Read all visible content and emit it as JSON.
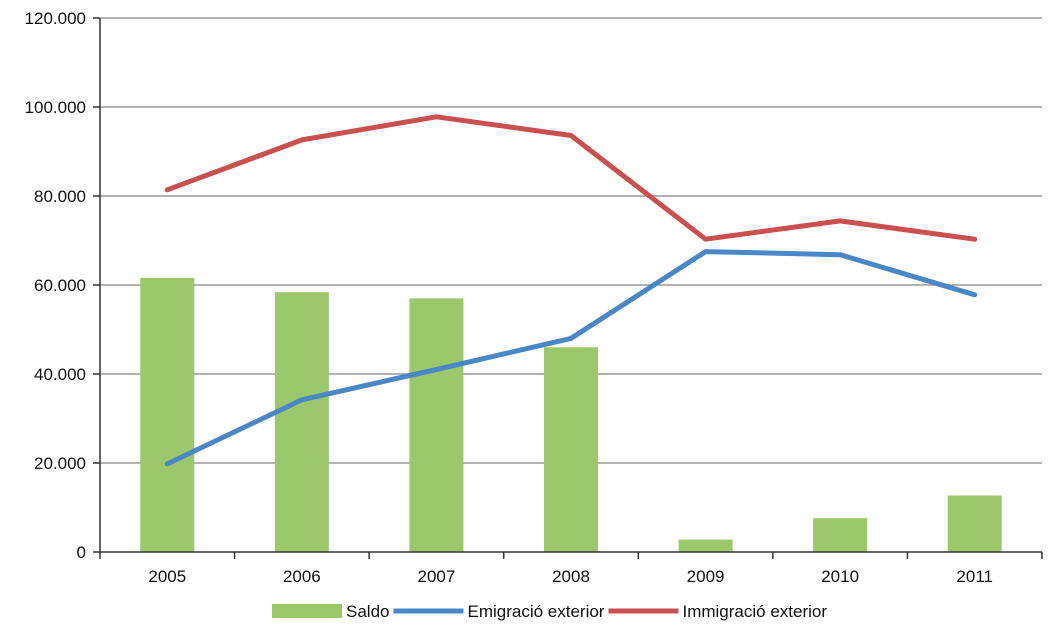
{
  "chart_data": {
    "type": "bar",
    "categories": [
      "2005",
      "2006",
      "2007",
      "2008",
      "2009",
      "2010",
      "2011"
    ],
    "series": [
      {
        "name": "Saldo",
        "kind": "bar",
        "color": "#9bc86a",
        "values": [
          61600,
          58400,
          57000,
          46000,
          2800,
          7600,
          12700
        ]
      },
      {
        "name": "Emigració exterior",
        "kind": "line",
        "color": "#4a87c6",
        "values": [
          19800,
          34200,
          41000,
          48000,
          67500,
          66800,
          57800
        ]
      },
      {
        "name": "Immigració exterior",
        "kind": "line",
        "color": "#c9504e",
        "values": [
          81400,
          92600,
          97800,
          93600,
          70300,
          74400,
          70300
        ]
      }
    ],
    "ylim": [
      0,
      120000
    ],
    "y_ticks": [
      0,
      20000,
      40000,
      60000,
      80000,
      100000,
      120000
    ],
    "y_tick_labels": [
      "0",
      "20.000",
      "40.000",
      "60.000",
      "80.000",
      "100.000",
      "120.000"
    ],
    "grid": "horizontal",
    "legend": "bottom",
    "title": "",
    "xlabel": "",
    "ylabel": ""
  }
}
